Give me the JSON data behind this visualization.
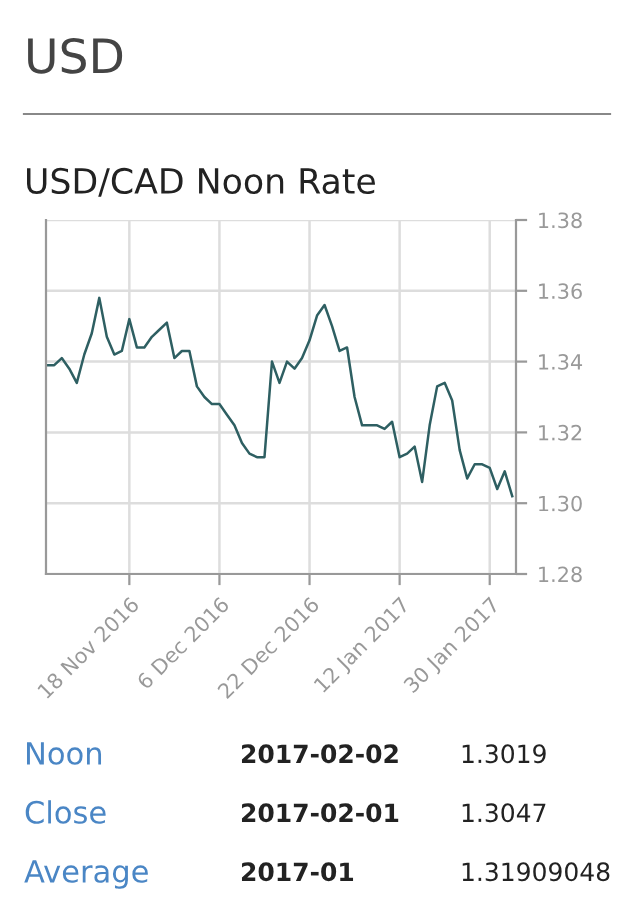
{
  "chart_data": {
    "type": "line",
    "title": "USD",
    "subtitle": "USD/CAD Noon Rate",
    "categories": [
      null,
      null,
      null,
      null,
      null,
      null,
      null,
      null,
      null,
      null,
      null,
      "18 Nov 2016",
      null,
      null,
      null,
      null,
      null,
      null,
      null,
      null,
      null,
      null,
      null,
      "6 Dec 2016",
      null,
      null,
      null,
      null,
      null,
      null,
      null,
      null,
      null,
      null,
      null,
      "22 Dec 2016",
      null,
      null,
      null,
      null,
      null,
      null,
      null,
      null,
      null,
      null,
      null,
      "12 Jan 2017",
      null,
      null,
      null,
      null,
      null,
      null,
      null,
      null,
      null,
      null,
      null,
      "30 Jan 2017",
      null,
      null,
      null
    ],
    "series": [
      {
        "color": "#2e5f62",
        "values": [
          1.339,
          1.339,
          1.341,
          1.338,
          1.334,
          1.342,
          1.348,
          1.358,
          1.347,
          1.342,
          1.343,
          1.352,
          1.344,
          1.344,
          1.347,
          1.349,
          1.351,
          1.341,
          1.343,
          1.343,
          1.333,
          1.33,
          1.328,
          1.328,
          1.325,
          1.322,
          1.317,
          1.314,
          1.313,
          1.313,
          1.34,
          1.334,
          1.34,
          1.338,
          1.341,
          1.346,
          1.353,
          1.356,
          1.35,
          1.343,
          1.344,
          1.33,
          1.322,
          1.322,
          1.322,
          1.321,
          1.323,
          1.313,
          1.314,
          1.316,
          1.306,
          1.322,
          1.333,
          1.334,
          1.329,
          1.315,
          1.307,
          1.311,
          1.311,
          1.31,
          1.304,
          1.309,
          1.302
        ]
      }
    ],
    "ylim": [
      1.28,
      1.38
    ],
    "yticks": [
      {
        "value": 1.28,
        "label": "1.28"
      },
      {
        "value": 1.3,
        "label": "1.30"
      },
      {
        "value": 1.32,
        "label": "1.32"
      },
      {
        "value": 1.34,
        "label": "1.34"
      },
      {
        "value": 1.36,
        "label": "1.36"
      },
      {
        "value": 1.38,
        "label": "1.38"
      }
    ],
    "grid": true,
    "legend": false,
    "annotations": [
      "Noon",
      "2017-02-02",
      "1.3019",
      "Close",
      "2017-02-01",
      "1.3047",
      "Average",
      "2017-01",
      "1.31909048"
    ]
  }
}
